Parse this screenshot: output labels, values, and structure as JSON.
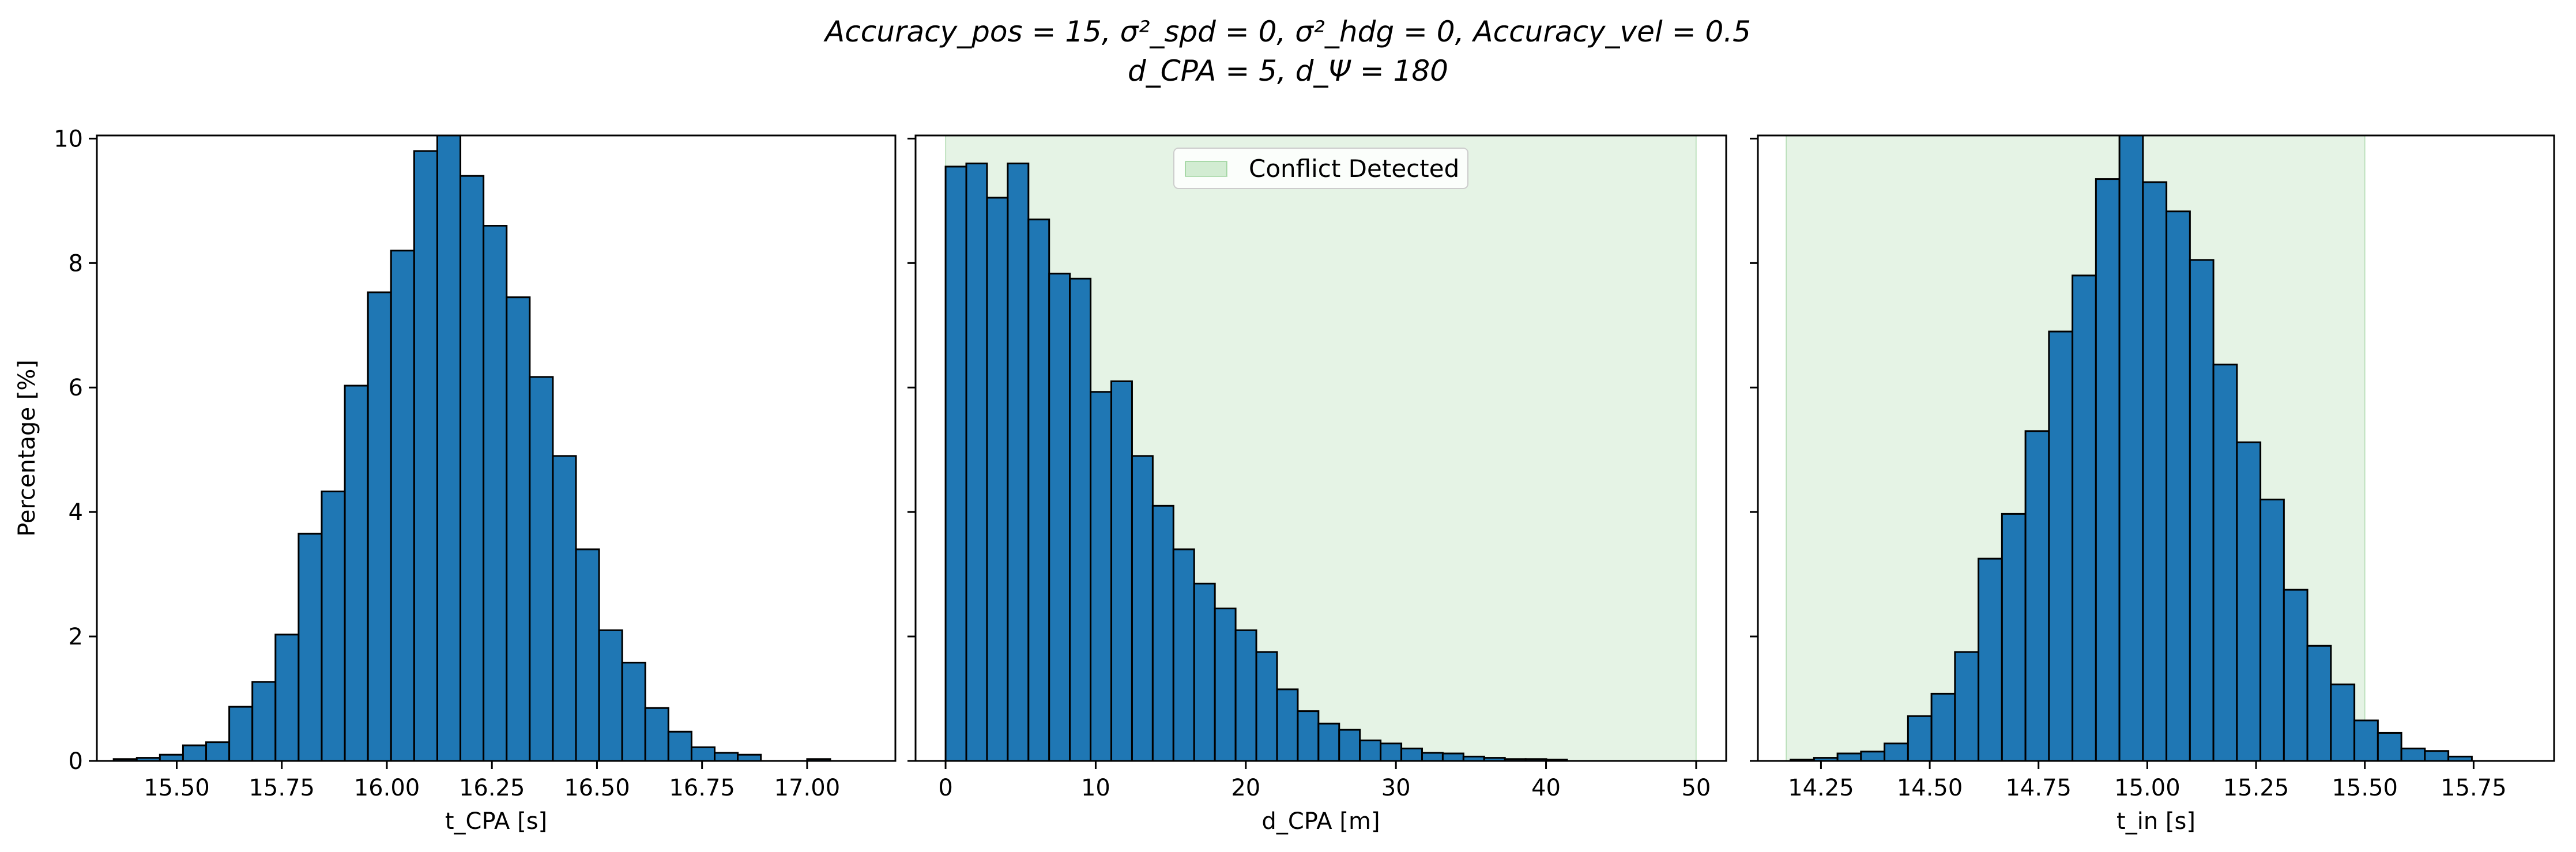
{
  "figure": {
    "title_line1": "Accuracy_pos = 15, σ²_spd = 0, σ²_hdg = 0, Accuracy_vel = 0.5",
    "title_line2": "d_CPA = 5, d_Ψ = 180"
  },
  "colors": {
    "bar_fill": "#1f77b4",
    "bar_edge": "#000000",
    "conflict_fill": "#2ca02c",
    "conflict_alpha": 0.12
  },
  "chart_data": [
    {
      "type": "bar",
      "subtype": "histogram",
      "xlabel": "t_CPA [s]",
      "ylabel": "Percentage [%]",
      "xlim": [
        15.31,
        17.21
      ],
      "ylim": [
        0,
        10.05
      ],
      "xticks": [
        15.5,
        15.75,
        16.0,
        16.25,
        16.5,
        16.75,
        17.0
      ],
      "xtick_labels": [
        "15.50",
        "15.75",
        "16.00",
        "16.25",
        "16.50",
        "16.75",
        "17.00"
      ],
      "yticks": [
        0,
        2,
        4,
        6,
        8,
        10
      ],
      "ytick_labels": [
        "0",
        "2",
        "4",
        "6",
        "8",
        "10"
      ],
      "show_yticklabels": true,
      "bin_edges": [
        15.35,
        15.405,
        15.46,
        15.515,
        15.57,
        15.625,
        15.68,
        15.735,
        15.79,
        15.845,
        15.9,
        15.955,
        16.01,
        16.065,
        16.12,
        16.175,
        16.23,
        16.285,
        16.34,
        16.395,
        16.45,
        16.505,
        16.56,
        16.615,
        16.67,
        16.725,
        16.78,
        16.835,
        16.89,
        16.945,
        17.0,
        17.055,
        17.11
      ],
      "values": [
        0.03,
        0.05,
        0.1,
        0.25,
        0.3,
        0.87,
        1.27,
        2.03,
        3.65,
        4.33,
        6.03,
        7.53,
        8.2,
        9.8,
        10.05,
        9.4,
        8.6,
        7.45,
        6.17,
        4.9,
        3.4,
        2.1,
        1.58,
        0.85,
        0.47,
        0.22,
        0.13,
        0.1,
        0.0,
        0.0,
        0.03,
        0.0
      ]
    },
    {
      "type": "bar",
      "subtype": "histogram",
      "xlabel": "d_CPA [m]",
      "ylim": [
        0,
        10.05
      ],
      "xlim": [
        -2.0,
        52.0
      ],
      "xticks": [
        0,
        10,
        20,
        30,
        40,
        50
      ],
      "xtick_labels": [
        "0",
        "10",
        "20",
        "30",
        "40",
        "50"
      ],
      "yticks": [
        0,
        2,
        4,
        6,
        8,
        10
      ],
      "show_yticklabels": false,
      "shaded_region": {
        "x0": 0,
        "x1": 50,
        "label": "Conflict Detected"
      },
      "legend": {
        "loc": "upper center",
        "entries": [
          "Conflict Detected"
        ]
      },
      "bin_edges": [
        0.0,
        1.38,
        2.76,
        4.14,
        5.52,
        6.9,
        8.28,
        9.66,
        11.04,
        12.42,
        13.8,
        15.18,
        16.56,
        17.94,
        19.32,
        20.7,
        22.08,
        23.46,
        24.84,
        26.22,
        27.6,
        28.98,
        30.36,
        31.74,
        33.12,
        34.5,
        35.88,
        37.26,
        38.64,
        40.02,
        41.4
      ],
      "values": [
        9.55,
        9.6,
        9.05,
        9.6,
        8.7,
        7.83,
        7.75,
        5.93,
        6.1,
        4.9,
        4.1,
        3.4,
        2.85,
        2.45,
        2.1,
        1.75,
        1.15,
        0.8,
        0.6,
        0.5,
        0.33,
        0.28,
        0.2,
        0.13,
        0.12,
        0.07,
        0.05,
        0.03,
        0.03,
        0.02
      ]
    },
    {
      "type": "bar",
      "subtype": "histogram",
      "xlabel": "t_in [s]",
      "ylim": [
        0,
        10.05
      ],
      "xlim": [
        14.105,
        15.935
      ],
      "xticks": [
        14.25,
        14.5,
        14.75,
        15.0,
        15.25,
        15.5,
        15.75
      ],
      "xtick_labels": [
        "14.25",
        "14.50",
        "14.75",
        "15.00",
        "15.25",
        "15.50",
        "15.75"
      ],
      "yticks": [
        0,
        2,
        4,
        6,
        8,
        10
      ],
      "show_yticklabels": false,
      "shaded_region": {
        "x0": 14.17,
        "x1": 15.5
      },
      "bin_edges": [
        14.18,
        14.234,
        14.288,
        14.342,
        14.396,
        14.45,
        14.504,
        14.558,
        14.612,
        14.666,
        14.72,
        14.774,
        14.828,
        14.882,
        14.936,
        14.99,
        15.044,
        15.098,
        15.152,
        15.206,
        15.26,
        15.314,
        15.368,
        15.422,
        15.476,
        15.53,
        15.584,
        15.638,
        15.692,
        15.746,
        15.8,
        15.854,
        15.908
      ],
      "values": [
        0.02,
        0.05,
        0.12,
        0.15,
        0.28,
        0.72,
        1.08,
        1.75,
        3.25,
        3.97,
        5.3,
        6.9,
        7.8,
        9.35,
        10.05,
        9.3,
        8.83,
        8.05,
        6.37,
        5.12,
        4.2,
        2.75,
        1.85,
        1.23,
        0.65,
        0.45,
        0.2,
        0.16,
        0.07,
        0.0,
        0.0,
        0.0
      ]
    }
  ]
}
